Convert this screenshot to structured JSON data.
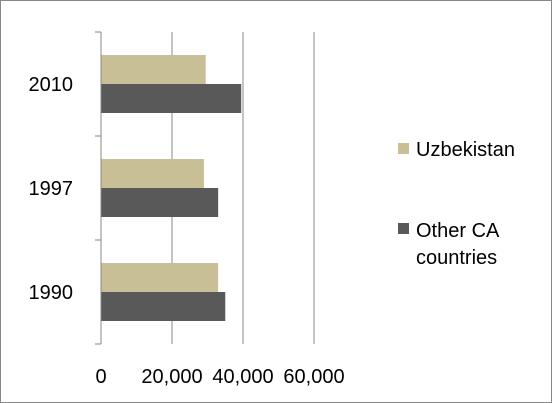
{
  "chart_data": {
    "type": "bar",
    "orientation": "horizontal",
    "categories": [
      "1990",
      "1997",
      "2010"
    ],
    "series": [
      {
        "name": "Uzbekistan",
        "values": [
          33000,
          29000,
          29500
        ],
        "color": "#C9BF96"
      },
      {
        "name": "Other CA countries",
        "values": [
          35000,
          33000,
          39500
        ],
        "color": "#595959"
      }
    ],
    "xlim": [
      0,
      60000
    ],
    "x_ticks": [
      0,
      20000,
      40000,
      60000
    ],
    "x_tick_labels": [
      "0",
      "20,000",
      "40,000",
      "60,000"
    ],
    "grid": "vertical",
    "legend_position": "right",
    "legend": [
      {
        "label_lines": [
          "Uzbekistan"
        ],
        "color": "#C9BF96"
      },
      {
        "label_lines": [
          "Other CA",
          "countries"
        ],
        "color": "#595959"
      }
    ]
  }
}
